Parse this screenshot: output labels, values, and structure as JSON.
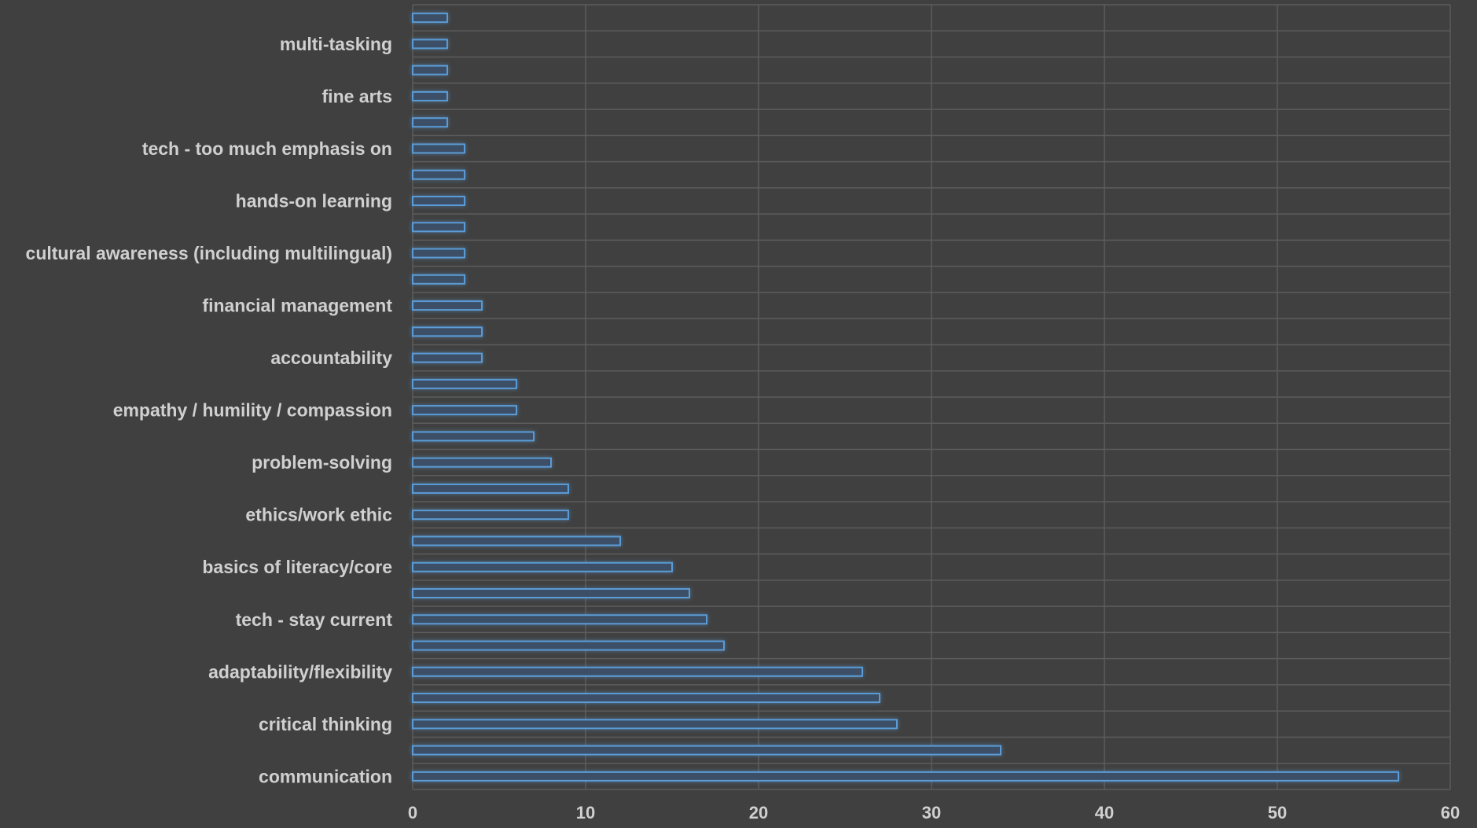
{
  "chart_data": {
    "type": "bar",
    "orientation": "horizontal",
    "grid": true,
    "legend": "none",
    "xlim": [
      0,
      60
    ],
    "x_ticks": [
      "0",
      "10",
      "20",
      "30",
      "40",
      "50",
      "60"
    ],
    "categories": [
      "communication",
      "",
      "critical thinking",
      "",
      "adaptability/flexibility",
      "",
      "tech - stay current",
      "",
      "basics of literacy/core",
      "",
      "ethics/work ethic",
      "",
      "problem-solving",
      "",
      "empathy / humility / compassion",
      "",
      "accountability",
      "",
      "financial management",
      "",
      "cultural awareness (including multilingual)",
      "",
      "hands-on learning",
      "",
      "tech - too much emphasis on",
      "",
      "fine arts",
      "",
      "multi-tasking",
      ""
    ],
    "values": [
      57,
      34,
      28,
      27,
      26,
      18,
      17,
      16,
      15,
      12,
      9,
      9,
      8,
      7,
      6,
      6,
      4,
      4,
      4,
      3,
      3,
      3,
      3,
      3,
      3,
      2,
      2,
      2,
      2,
      2
    ],
    "colors": {
      "background": "#404040",
      "grid": "#5c5c5c",
      "bar_fill": "#3d4f66",
      "bar_stroke": "#5b9bd5",
      "text": "#d0d0d0"
    }
  }
}
